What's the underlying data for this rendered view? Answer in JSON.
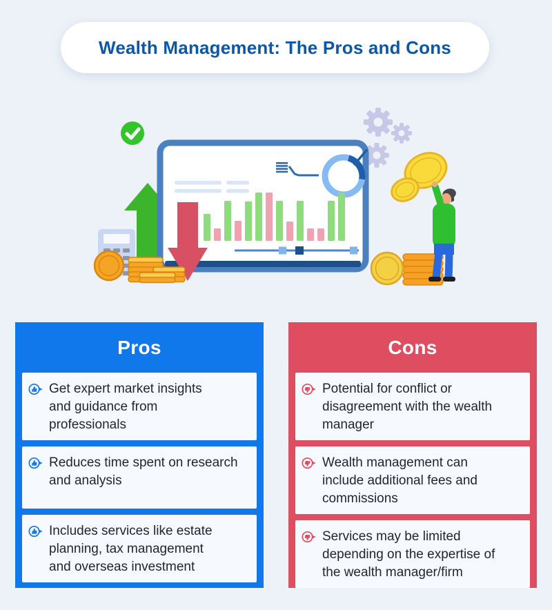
{
  "page": {
    "background_color": "#edf2f8"
  },
  "header": {
    "title": "Wealth Management: The Pros and Cons",
    "title_color": "#0b57a8"
  },
  "illustration": {
    "icons": [
      "check-circle-icon",
      "gears-icon",
      "monitor-chart-graphic",
      "donut-chart-icon",
      "up-arrow-icon",
      "down-arrow-icon",
      "calculator-icon",
      "coins-icon",
      "person-with-coin-graphic"
    ],
    "monitor": {
      "bar_colors": {
        "green": "#8edc7d",
        "pink": "#f0a2b2"
      },
      "bars": [
        {
          "c": "green",
          "h": 39
        },
        {
          "c": "pink",
          "h": 18
        },
        {
          "c": "green",
          "h": 58
        },
        {
          "c": "pink",
          "h": 29
        },
        {
          "c": "green",
          "h": 57
        },
        {
          "c": "green",
          "h": 70
        },
        {
          "c": "pink",
          "h": 70
        },
        {
          "c": "green",
          "h": 58
        },
        {
          "c": "pink",
          "h": 28
        },
        {
          "c": "green",
          "h": 58
        },
        {
          "c": "pink",
          "h": 18
        },
        {
          "c": "pink",
          "h": 18
        },
        {
          "c": "green",
          "h": 58
        },
        {
          "c": "green",
          "h": 70
        }
      ]
    }
  },
  "pros": {
    "title": "Pros",
    "accent_color": "#1178ec",
    "icon": "thumbs-up-circle-icon",
    "items": [
      {
        "text": "Get expert market insights\nand guidance from\nprofessionals"
      },
      {
        "text": "Reduces time spent on research\nand analysis"
      },
      {
        "text": "Includes services like estate\nplanning, tax management\nand overseas investment"
      }
    ]
  },
  "cons": {
    "title": "Cons",
    "accent_color": "#df4d61",
    "icon": "thumbs-down-circle-icon",
    "items": [
      {
        "text": "Potential for conflict or\ndisagreement with the wealth\nmanager"
      },
      {
        "text": "Wealth management can\ninclude additional fees and\ncommissions"
      },
      {
        "text": "Services may be limited\ndepending on the expertise of\nthe wealth manager/firm"
      }
    ]
  }
}
